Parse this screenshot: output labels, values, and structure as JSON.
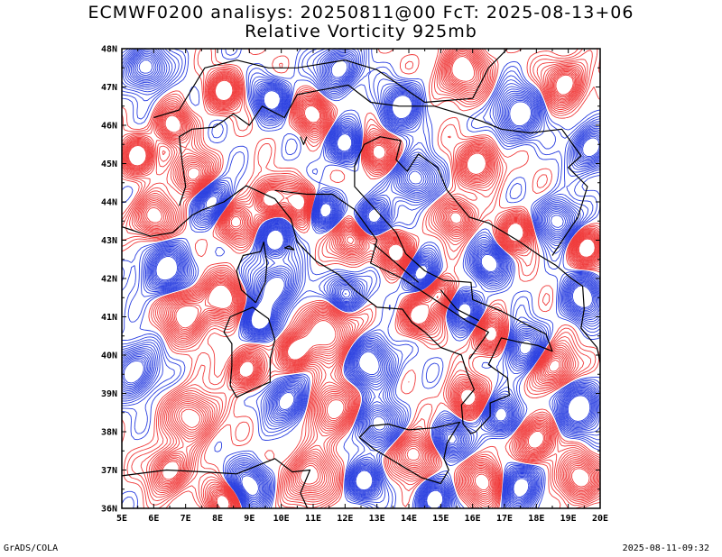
{
  "title_line1": "ECMWF0200 analisys: 20250811@00 FcT: 2025-08-13+06",
  "title_line2": "Relative Vorticity 925mb",
  "lat_labels": [
    "36N",
    "37N",
    "38N",
    "39N",
    "40N",
    "41N",
    "42N",
    "43N",
    "44N",
    "45N",
    "46N",
    "47N",
    "48N"
  ],
  "lon_labels": [
    "5E",
    "6E",
    "7E",
    "8E",
    "9E",
    "10E",
    "11E",
    "12E",
    "13E",
    "14E",
    "15E",
    "16E",
    "17E",
    "18E",
    "19E",
    "20E"
  ],
  "footer_left": "GrADS/COLA",
  "footer_right": "2025-08-11-09:32",
  "colors": {
    "positive_contour": "#f03a3a",
    "negative_contour": "#2a3fe0",
    "coastline": "#000000",
    "background": "#ffffff"
  },
  "map_extent": {
    "lon": [
      5,
      20
    ],
    "lat": [
      36,
      48
    ]
  }
}
